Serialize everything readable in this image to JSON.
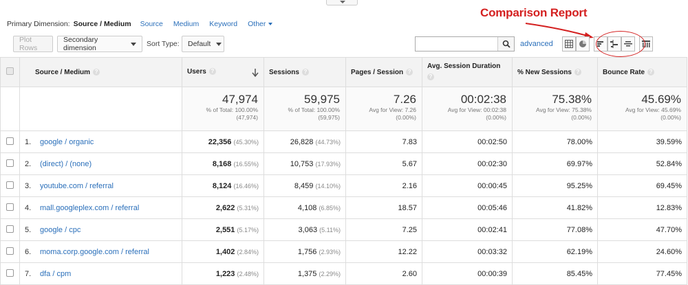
{
  "primary_dimension": {
    "label": "Primary Dimension:",
    "active": "Source / Medium",
    "options": [
      "Source",
      "Medium",
      "Keyword"
    ],
    "other": "Other"
  },
  "annotation": "Comparison Report",
  "toolbar": {
    "plot_rows": "Plot Rows",
    "secondary_dimension": "Secondary dimension",
    "sort_type_label": "Sort Type:",
    "sort_type_value": "Default",
    "search_value": "",
    "advanced": "advanced"
  },
  "columns": [
    "Source / Medium",
    "Users",
    "Sessions",
    "Pages / Session",
    "Avg. Session Duration",
    "% New Sessions",
    "Bounce Rate"
  ],
  "totals": [
    {
      "big": "47,974",
      "sub1": "% of Total: 100.00%",
      "sub2": "(47,974)"
    },
    {
      "big": "59,975",
      "sub1": "% of Total: 100.00%",
      "sub2": "(59,975)"
    },
    {
      "big": "7.26",
      "sub1": "Avg for View: 7.26",
      "sub2": "(0.00%)"
    },
    {
      "big": "00:02:38",
      "sub1": "Avg for View: 00:02:38",
      "sub2": "(0.00%)"
    },
    {
      "big": "75.38%",
      "sub1": "Avg for View: 75.38%",
      "sub2": "(0.00%)"
    },
    {
      "big": "45.69%",
      "sub1": "Avg for View: 45.69%",
      "sub2": "(0.00%)"
    }
  ],
  "rows": [
    {
      "idx": "1.",
      "source": "google / organic",
      "users": "22,356",
      "users_pct": "(45.30%)",
      "sessions": "26,828",
      "sessions_pct": "(44.73%)",
      "pps": "7.83",
      "dur": "00:02:50",
      "new": "78.00%",
      "bounce": "39.59%"
    },
    {
      "idx": "2.",
      "source": "(direct) / (none)",
      "users": "8,168",
      "users_pct": "(16.55%)",
      "sessions": "10,753",
      "sessions_pct": "(17.93%)",
      "pps": "5.67",
      "dur": "00:02:30",
      "new": "69.97%",
      "bounce": "52.84%"
    },
    {
      "idx": "3.",
      "source": "youtube.com / referral",
      "users": "8,124",
      "users_pct": "(16.46%)",
      "sessions": "8,459",
      "sessions_pct": "(14.10%)",
      "pps": "2.16",
      "dur": "00:00:45",
      "new": "95.25%",
      "bounce": "69.45%"
    },
    {
      "idx": "4.",
      "source": "mall.googleplex.com / referral",
      "users": "2,622",
      "users_pct": "(5.31%)",
      "sessions": "4,108",
      "sessions_pct": "(6.85%)",
      "pps": "18.57",
      "dur": "00:05:46",
      "new": "41.82%",
      "bounce": "12.83%"
    },
    {
      "idx": "5.",
      "source": "google / cpc",
      "users": "2,551",
      "users_pct": "(5.17%)",
      "sessions": "3,063",
      "sessions_pct": "(5.11%)",
      "pps": "7.25",
      "dur": "00:02:41",
      "new": "77.08%",
      "bounce": "47.70%"
    },
    {
      "idx": "6.",
      "source": "moma.corp.google.com / referral",
      "users": "1,402",
      "users_pct": "(2.84%)",
      "sessions": "1,756",
      "sessions_pct": "(2.93%)",
      "pps": "12.22",
      "dur": "00:03:32",
      "new": "62.19%",
      "bounce": "24.60%"
    },
    {
      "idx": "7.",
      "source": "dfa / cpm",
      "users": "1,223",
      "users_pct": "(2.48%)",
      "sessions": "1,375",
      "sessions_pct": "(2.29%)",
      "pps": "2.60",
      "dur": "00:00:39",
      "new": "85.45%",
      "bounce": "77.45%"
    }
  ]
}
